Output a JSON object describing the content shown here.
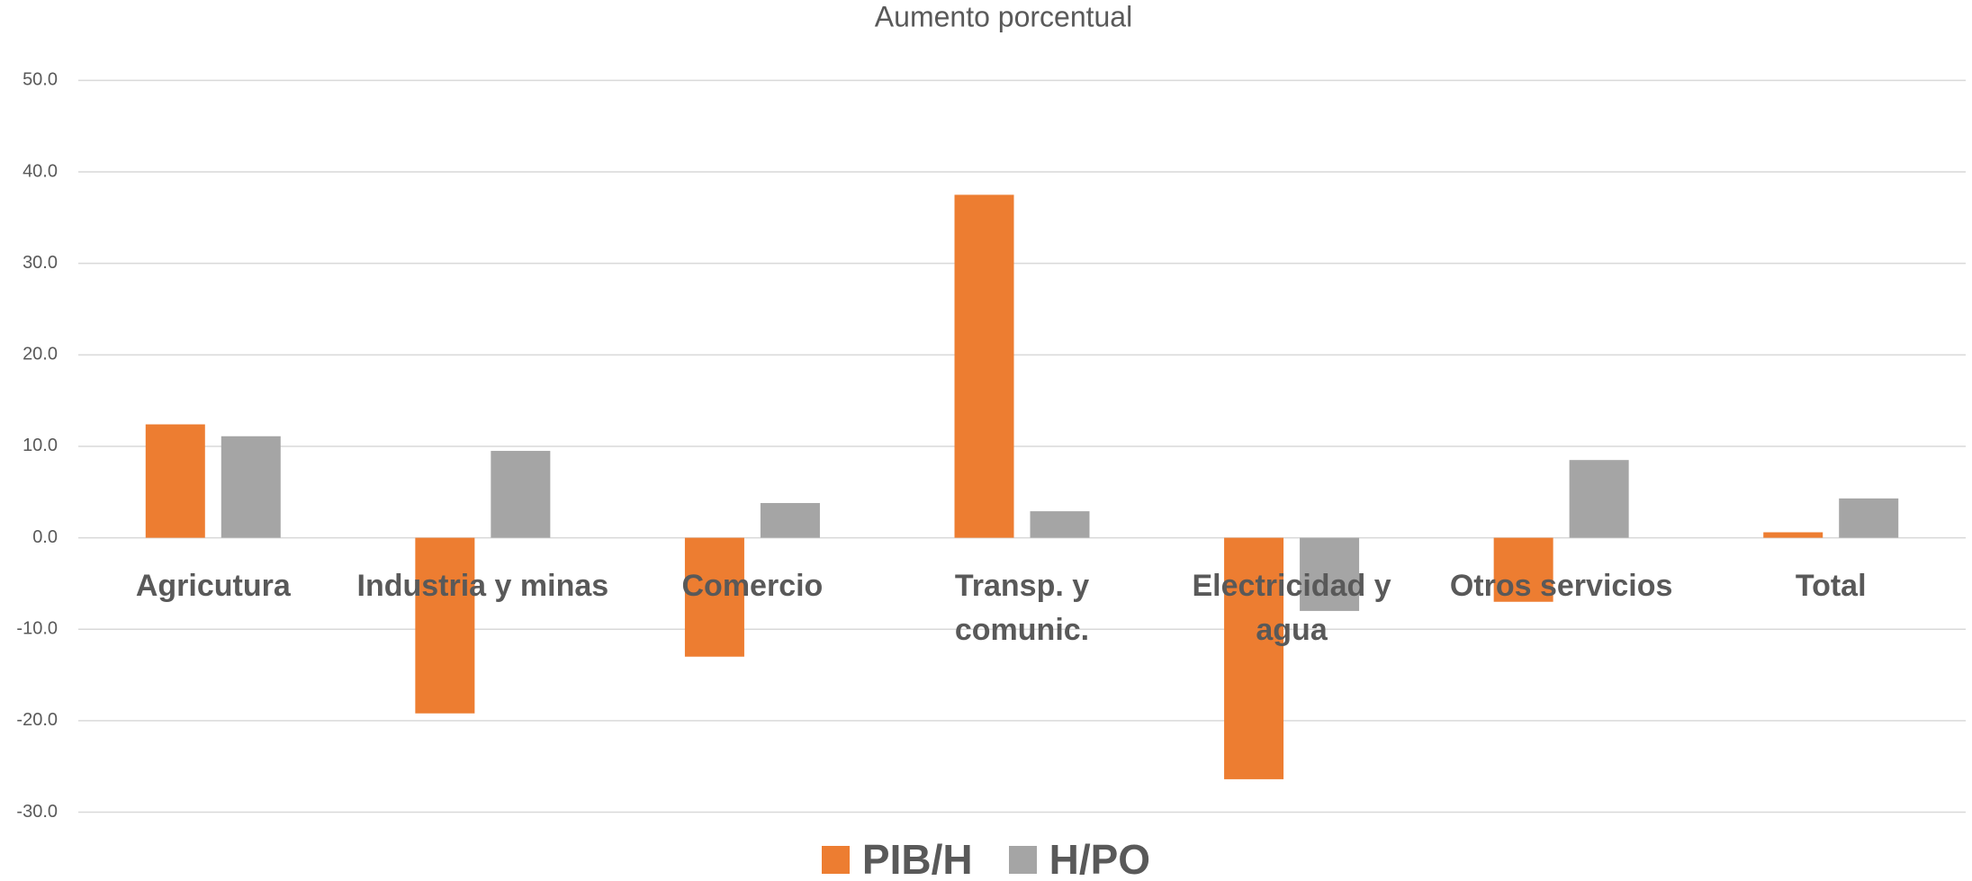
{
  "chart_data": {
    "type": "bar",
    "title": "Aumento porcentual",
    "categories": [
      "Agricutura",
      "Industria y minas",
      "Comercio",
      "Transp. y comunic.",
      "Electricidad y agua",
      "Otros servicios",
      "Total"
    ],
    "series": [
      {
        "name": "PIB/H",
        "color": "#ED7D31",
        "values": [
          12.4,
          -19.2,
          -13.0,
          37.5,
          -26.4,
          -7.0,
          0.6
        ]
      },
      {
        "name": "H/PO",
        "color": "#A5A5A5",
        "values": [
          11.1,
          9.5,
          3.8,
          2.9,
          -8.0,
          8.5,
          4.3
        ]
      }
    ],
    "ylim": [
      -30,
      50
    ],
    "yticks": [
      {
        "value": -30,
        "label": "-30.0"
      },
      {
        "value": -20,
        "label": "-20.0"
      },
      {
        "value": -10,
        "label": "-10.0"
      },
      {
        "value": 0,
        "label": "0.0"
      },
      {
        "value": 10,
        "label": "10.0"
      },
      {
        "value": 20,
        "label": "20.0"
      },
      {
        "value": 30,
        "label": "30.0"
      },
      {
        "value": 40,
        "label": "40.0"
      },
      {
        "value": 50,
        "label": "50.0"
      }
    ],
    "grid": true,
    "legend": "bottom"
  }
}
